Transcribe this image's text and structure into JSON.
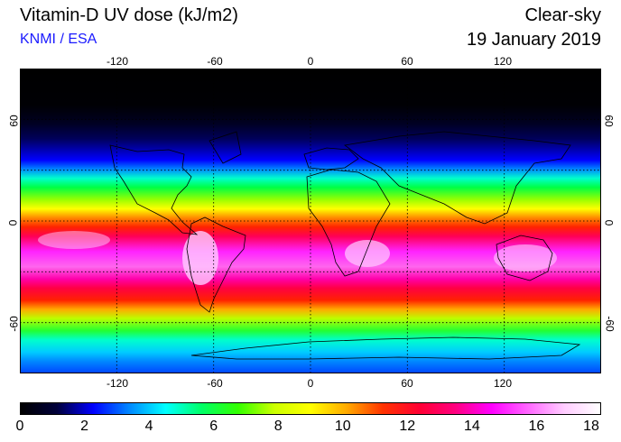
{
  "header": {
    "title": "Vitamin-D UV dose (kJ/m2)",
    "credit": "KNMI / ESA",
    "variant": "Clear-sky",
    "date": "19 January 2019"
  },
  "map": {
    "projection": "equirectangular",
    "lon_range": [
      -180,
      180
    ],
    "lat_range": [
      -90,
      90
    ],
    "lon_ticks": [
      "-120",
      "-60",
      "0",
      "60",
      "120"
    ],
    "lat_ticks": [
      "60",
      "0",
      "-60"
    ],
    "gridlines": true,
    "gridline_style": "dotted"
  },
  "colorbar": {
    "min": 0,
    "max": 18,
    "tick_labels": [
      "0",
      "2",
      "4",
      "6",
      "8",
      "10",
      "12",
      "14",
      "16",
      "18"
    ],
    "colors": [
      "#000000",
      "#00003a",
      "#0000ff",
      "#0088ff",
      "#00ffff",
      "#00ff66",
      "#33ff00",
      "#ccff00",
      "#ffff00",
      "#ffaa00",
      "#ff3300",
      "#ff0033",
      "#ff0080",
      "#ff00ff",
      "#ff66ff",
      "#ffccff",
      "#ffffff"
    ]
  }
}
